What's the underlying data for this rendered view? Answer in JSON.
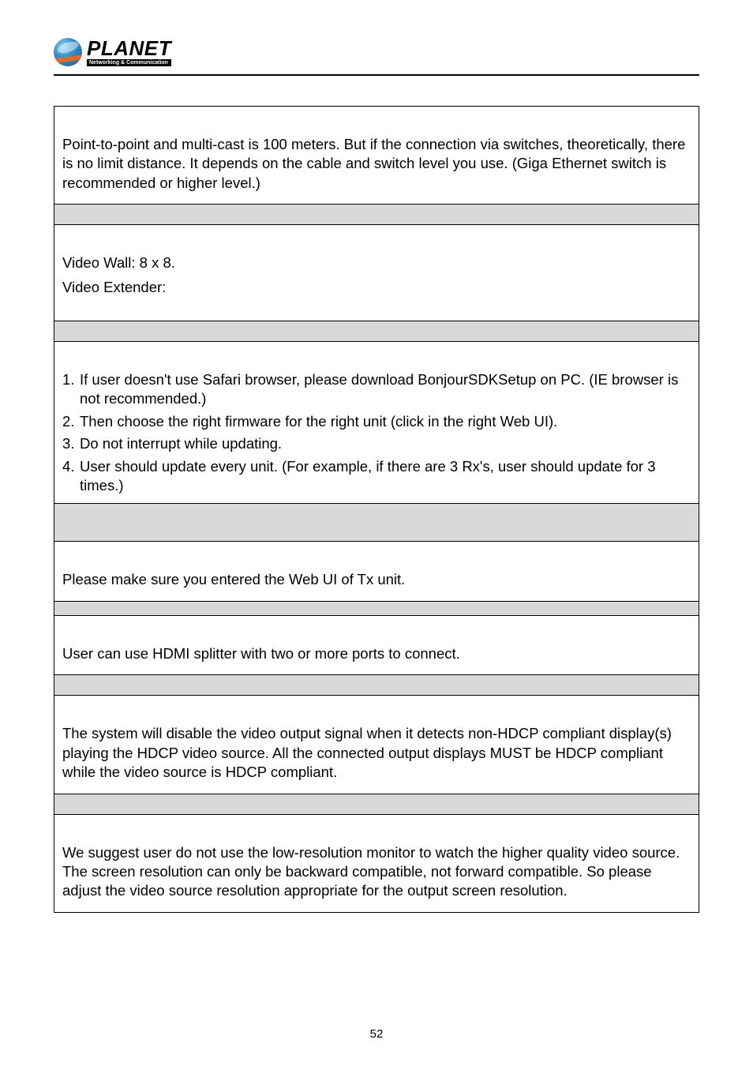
{
  "logo": {
    "word": "PLANET",
    "tagline": "Networking & Communication"
  },
  "rows": [
    {
      "type": "text",
      "pad_top": true,
      "paragraphs": [
        "Point-to-point and multi-cast is 100 meters. But if the connection via switches, theoretically, there is no limit distance. It depends on the cable and switch level you use. (Giga Ethernet switch is recommended or higher level.)"
      ]
    },
    {
      "type": "sep"
    },
    {
      "type": "text",
      "pad_top": true,
      "paragraphs": [
        "Video Wall: 8 x 8.",
        "Video Extender:"
      ],
      "extra_bottom": 30
    },
    {
      "type": "sep"
    },
    {
      "type": "list",
      "pad_top": true,
      "items": [
        {
          "n": "1.",
          "t": "If user doesn't use Safari browser, please download BonjourSDKSetup on PC. (IE browser is not recommended.)"
        },
        {
          "n": "2.",
          "t": "Then choose the right firmware for the right unit (click in the right Web UI)."
        },
        {
          "n": "3.",
          "t": "Do not interrupt while updating."
        },
        {
          "n": "4.",
          "t": "User should update every unit. (For example, if there are 3 Rx's, user should update for 3 times.)"
        }
      ]
    },
    {
      "type": "sep",
      "tall": true
    },
    {
      "type": "text",
      "pad_top": true,
      "paragraphs": [
        "Please make sure you entered the Web UI of Tx unit."
      ]
    },
    {
      "type": "sep",
      "short": true
    },
    {
      "type": "text",
      "pad_top": true,
      "paragraphs": [
        "User can use HDMI splitter with two or more ports to connect."
      ]
    },
    {
      "type": "sep"
    },
    {
      "type": "text",
      "pad_top": true,
      "paragraphs": [
        "The system will disable the video output signal when it detects non-HDCP compliant display(s) playing the HDCP video source. All the connected output displays MUST be HDCP compliant while the video source is HDCP compliant."
      ]
    },
    {
      "type": "sep"
    },
    {
      "type": "text",
      "pad_top": true,
      "paragraphs": [
        "We suggest user do not use the low-resolution monitor to watch the higher quality video source. The screen resolution can only be backward compatible, not forward compatible. So please adjust the video source resolution appropriate for the output screen resolution."
      ]
    }
  ],
  "page_number": "52",
  "colors": {
    "text": "#000000",
    "border": "#000000",
    "sep_bg": "#d8d8d8",
    "page_bg": "#ffffff"
  },
  "fonts": {
    "body_family": "Arial",
    "body_size_pt": 14,
    "logo_word_size_pt": 20,
    "logo_tag_size_pt": 5
  }
}
